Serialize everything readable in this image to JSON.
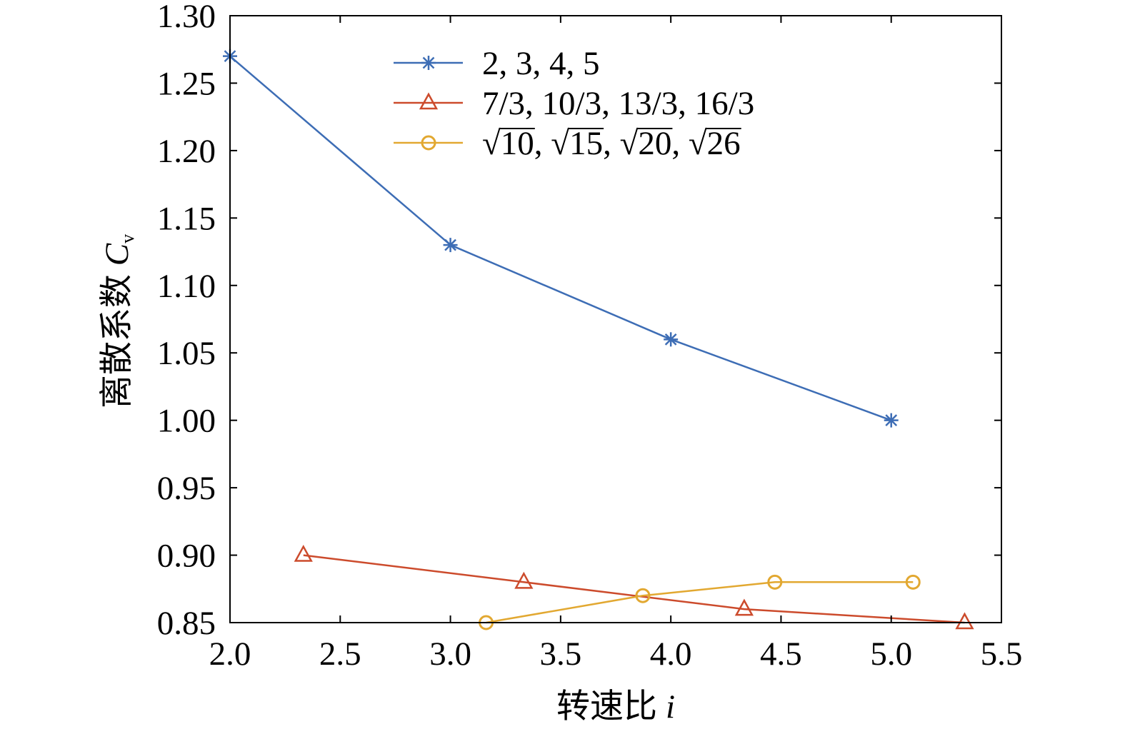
{
  "chart_data": {
    "type": "line",
    "xlabel": {
      "text": "转速比",
      "symbol": "i"
    },
    "ylabel": {
      "text": "离散系数",
      "symbol": "C",
      "subscript": "v"
    },
    "xlim": [
      2.0,
      5.5
    ],
    "ylim": [
      0.85,
      1.3
    ],
    "xticks": [
      "2.0",
      "2.5",
      "3.0",
      "3.5",
      "4.0",
      "4.5",
      "5.0",
      "5.5"
    ],
    "yticks": [
      "0.85",
      "0.90",
      "0.95",
      "1.00",
      "1.05",
      "1.10",
      "1.15",
      "1.20",
      "1.25",
      "1.30"
    ],
    "grid": false,
    "legend_position": "top-center",
    "series": [
      {
        "name": "2, 3, 4, 5",
        "color": "#3d6db5",
        "marker": "asterisk",
        "x": [
          2,
          3,
          4,
          5
        ],
        "y": [
          1.27,
          1.13,
          1.06,
          1.0
        ]
      },
      {
        "name": "7/3, 10/3, 13/3, 16/3",
        "color": "#cc4b2c",
        "marker": "triangle",
        "x": [
          2.333,
          3.333,
          4.333,
          5.333
        ],
        "y": [
          0.9,
          0.88,
          0.86,
          0.85
        ]
      },
      {
        "name": "√10, √15, √20, √26",
        "color": "#e2a831",
        "marker": "circle",
        "x": [
          3.162,
          3.873,
          4.472,
          5.099
        ],
        "y": [
          0.85,
          0.87,
          0.88,
          0.88
        ]
      }
    ]
  }
}
